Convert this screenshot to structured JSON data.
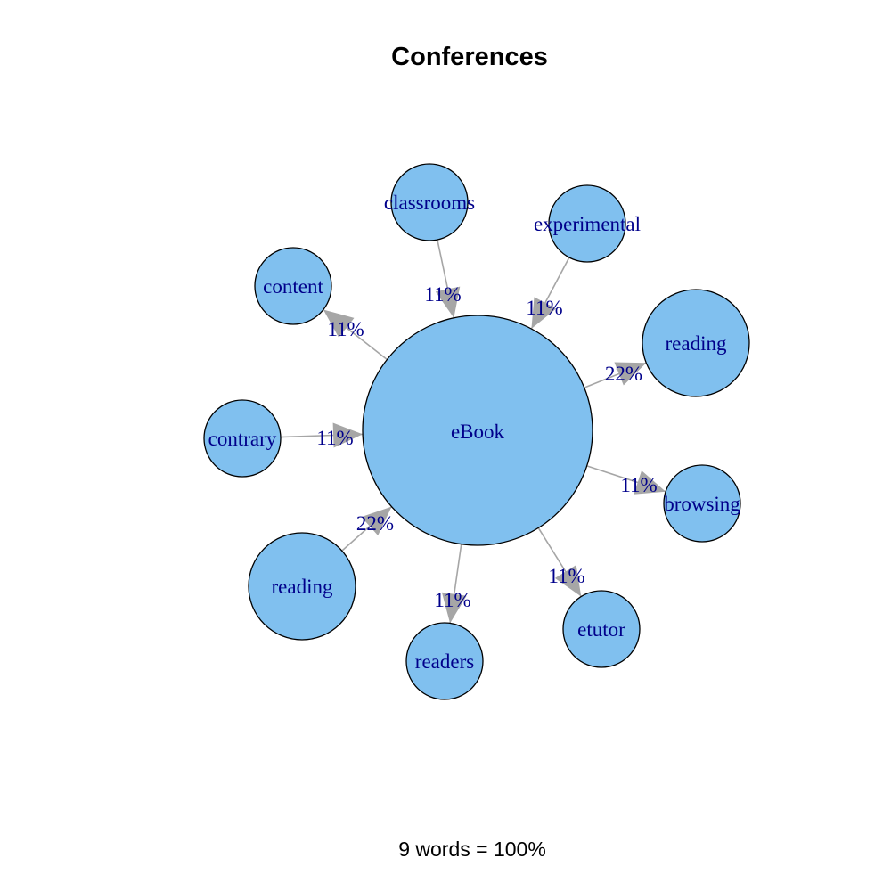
{
  "title": "Conferences",
  "footer": "9 words = 100%",
  "colors": {
    "node_fill": "#80c0ef",
    "node_stroke": "#000000",
    "edge": "#a6a6a6",
    "label": "#00008b"
  },
  "graph": {
    "center": {
      "id": "ebook",
      "label": "eBook"
    },
    "edges": [
      {
        "to": "classrooms",
        "label": "classrooms",
        "weight": "11%",
        "direction": "in"
      },
      {
        "to": "experimental",
        "label": "experimental",
        "weight": "11%",
        "direction": "in"
      },
      {
        "to": "reading-right",
        "label": "reading",
        "weight": "22%",
        "direction": "out"
      },
      {
        "to": "browsing",
        "label": "browsing",
        "weight": "11%",
        "direction": "out"
      },
      {
        "to": "etutor",
        "label": "etutor",
        "weight": "11%",
        "direction": "out"
      },
      {
        "to": "readers",
        "label": "readers",
        "weight": "11%",
        "direction": "out"
      },
      {
        "to": "reading-left",
        "label": "reading",
        "weight": "22%",
        "direction": "in"
      },
      {
        "to": "contrary",
        "label": "contrary",
        "weight": "11%",
        "direction": "in"
      },
      {
        "to": "content",
        "label": "content",
        "weight": "11%",
        "direction": "out"
      }
    ]
  }
}
